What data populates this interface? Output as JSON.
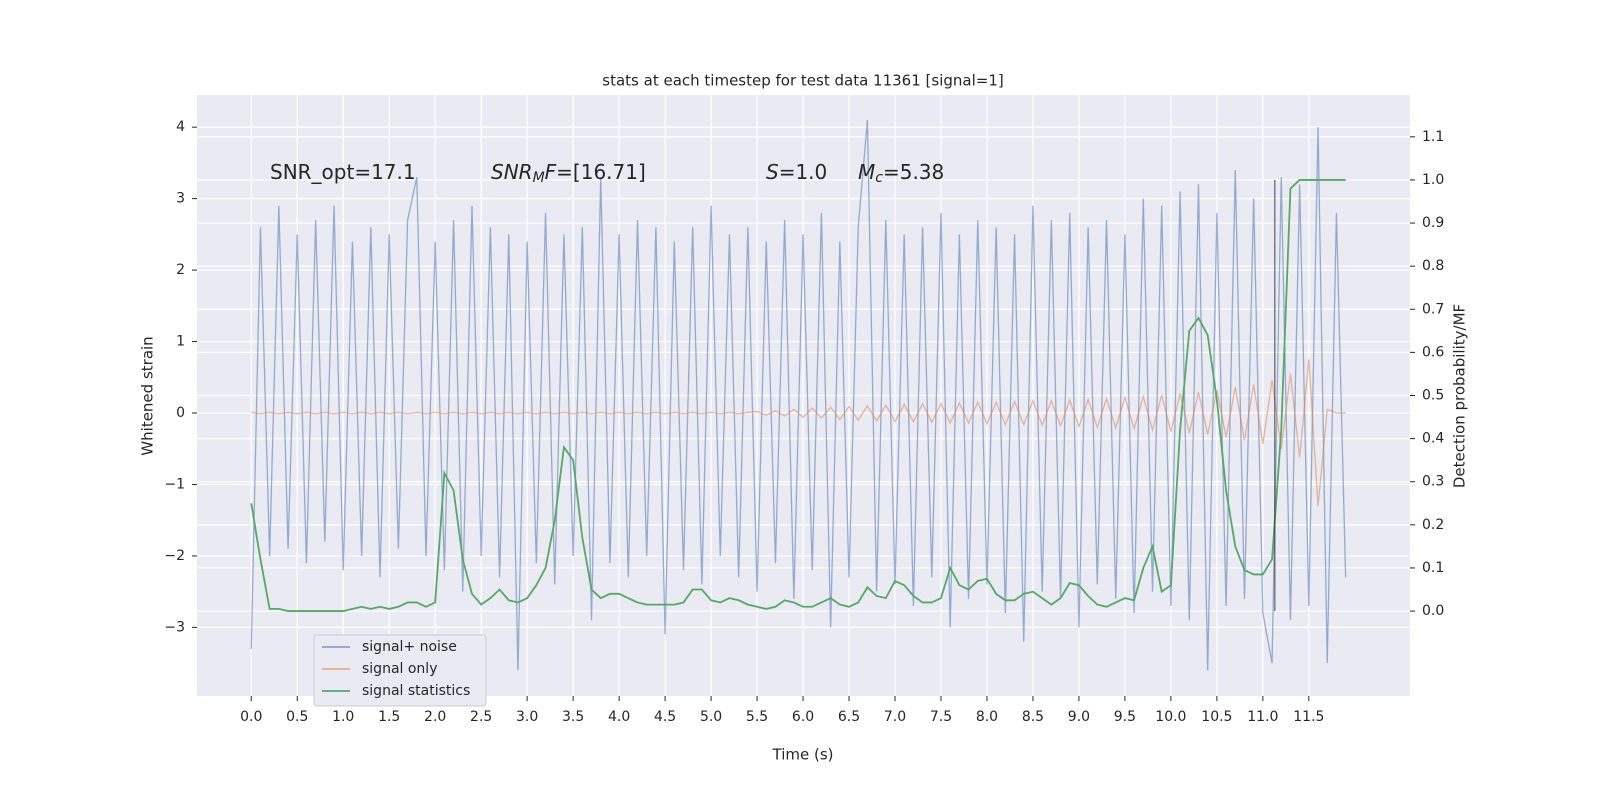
{
  "chart_data": {
    "type": "line",
    "title": "stats at each timestep for test data 11361 [signal=1]",
    "x_label": "Time (s)",
    "y_label": "Whitened strain",
    "y2_label": "Detection probability/MF",
    "grid": true,
    "legend": "lower left",
    "xlim": [
      -0.59,
      12.6
    ],
    "ylim": [
      -3.96,
      4.45
    ],
    "y2lim": [
      -0.197,
      1.197
    ],
    "xticks": [
      {
        "value": 0,
        "label": "0.0"
      },
      {
        "value": 0.5,
        "label": "0.5"
      },
      {
        "value": 1,
        "label": "1.0"
      },
      {
        "value": 1.5,
        "label": "1.5"
      },
      {
        "value": 2,
        "label": "2.0"
      },
      {
        "value": 2.5,
        "label": "2.5"
      },
      {
        "value": 3,
        "label": "3.0"
      },
      {
        "value": 3.5,
        "label": "3.5"
      },
      {
        "value": 4,
        "label": "4.0"
      },
      {
        "value": 4.5,
        "label": "4.5"
      },
      {
        "value": 5,
        "label": "5.0"
      },
      {
        "value": 5.5,
        "label": "5.5"
      },
      {
        "value": 6,
        "label": "6.0"
      },
      {
        "value": 6.5,
        "label": "6.5"
      },
      {
        "value": 7,
        "label": "7.0"
      },
      {
        "value": 7.5,
        "label": "7.5"
      },
      {
        "value": 8,
        "label": "8.0"
      },
      {
        "value": 8.5,
        "label": "8.5"
      },
      {
        "value": 9,
        "label": "9.0"
      },
      {
        "value": 9.5,
        "label": "9.5"
      },
      {
        "value": 10,
        "label": "10.0"
      },
      {
        "value": 10.5,
        "label": "10.5"
      },
      {
        "value": 11,
        "label": "11.0"
      },
      {
        "value": 11.5,
        "label": "11.5"
      }
    ],
    "yticks": [
      {
        "value": -3,
        "label": "−3"
      },
      {
        "value": -2,
        "label": "−2"
      },
      {
        "value": -1,
        "label": "−1"
      },
      0,
      1,
      2,
      3,
      4
    ],
    "y2ticks": [
      {
        "value": 0,
        "label": "0.0"
      },
      0.1,
      0.2,
      0.3,
      0.4,
      0.5,
      0.6,
      0.7,
      0.8,
      0.9,
      {
        "value": 1,
        "label": "1.0"
      },
      1.1
    ],
    "annotations": [
      {
        "parts": [
          "SNR_opt=17.1"
        ]
      },
      {
        "parts": [
          "SNR",
          "M",
          "F",
          "=[16.71]"
        ]
      },
      {
        "parts": [
          "S",
          "=1.0"
        ]
      },
      {
        "parts": [
          "M",
          "c",
          "=5.38"
        ]
      }
    ],
    "vline": {
      "x": 11.13,
      "y2_from": 0,
      "y2_to": 1
    },
    "x": [
      0,
      0.1,
      0.2,
      0.3,
      0.4,
      0.5,
      0.6,
      0.7,
      0.8,
      0.9,
      1,
      1.1,
      1.2,
      1.3,
      1.4,
      1.5,
      1.6,
      1.7,
      1.8,
      1.9,
      2,
      2.1,
      2.2,
      2.3,
      2.4,
      2.5,
      2.6,
      2.7,
      2.8,
      2.9,
      3,
      3.1,
      3.2,
      3.3,
      3.4,
      3.5,
      3.6,
      3.7,
      3.8,
      3.9,
      4,
      4.1,
      4.2,
      4.3,
      4.4,
      4.5,
      4.6,
      4.7,
      4.8,
      4.9,
      5,
      5.1,
      5.2,
      5.3,
      5.4,
      5.5,
      5.6,
      5.7,
      5.8,
      5.9,
      6,
      6.1,
      6.2,
      6.3,
      6.4,
      6.5,
      6.6,
      6.7,
      6.8,
      6.9,
      7,
      7.1,
      7.2,
      7.3,
      7.4,
      7.5,
      7.6,
      7.7,
      7.8,
      7.9,
      8,
      8.1,
      8.2,
      8.3,
      8.4,
      8.5,
      8.6,
      8.7,
      8.8,
      8.9,
      9,
      9.1,
      9.2,
      9.3,
      9.4,
      9.5,
      9.6,
      9.7,
      9.8,
      9.9,
      10,
      10.1,
      10.2,
      10.3,
      10.4,
      10.5,
      10.6,
      10.7,
      10.8,
      10.9,
      11,
      11.1,
      11.2,
      11.3,
      11.4,
      11.5,
      11.6,
      11.7,
      11.8,
      11.9
    ],
    "series": [
      {
        "name": "signal+ noise",
        "color": "#4c72b0",
        "values": [
          -3.3,
          2.6,
          -2.0,
          2.9,
          -1.9,
          2.5,
          -2.1,
          2.7,
          -1.8,
          2.9,
          -2.2,
          2.4,
          -2.0,
          2.6,
          -2.3,
          2.5,
          -1.9,
          2.7,
          3.3,
          -2.0,
          2.4,
          -2.2,
          2.7,
          -2.5,
          2.9,
          -2.0,
          2.6,
          -2.3,
          2.5,
          -3.6,
          2.4,
          -2.1,
          2.8,
          -2.4,
          2.5,
          -2.0,
          2.6,
          -2.9,
          3.3,
          -2.1,
          2.5,
          -2.3,
          2.7,
          -2.0,
          2.6,
          -3.1,
          2.4,
          -2.2,
          2.6,
          -2.4,
          2.9,
          -2.0,
          2.5,
          -2.3,
          2.6,
          -2.5,
          2.4,
          -2.1,
          2.7,
          -2.6,
          2.5,
          -2.2,
          2.8,
          -3.0,
          2.4,
          -2.3,
          2.6,
          4.1,
          -2.5,
          2.7,
          -2.4,
          2.5,
          -2.7,
          2.6,
          -2.3,
          2.8,
          -3.0,
          2.5,
          -2.6,
          2.7,
          -2.4,
          2.6,
          -2.8,
          2.5,
          -3.2,
          2.9,
          -2.5,
          2.7,
          -2.6,
          2.8,
          -3.0,
          2.6,
          -2.4,
          2.7,
          -2.6,
          2.5,
          -2.8,
          3.0,
          -2.5,
          2.9,
          -2.7,
          3.1,
          -2.9,
          3.2,
          -3.6,
          2.8,
          -2.7,
          3.4,
          -2.6,
          3.0,
          -2.8,
          -3.5,
          3.3,
          -2.9,
          3.2,
          -2.7,
          4.0,
          -3.5,
          2.8,
          -2.3
        ]
      },
      {
        "name": "signal only",
        "color": "#dd8452",
        "values": [
          0.01,
          -0.01,
          0.01,
          -0.01,
          0.01,
          -0.01,
          0.01,
          -0.01,
          0.01,
          -0.01,
          0.01,
          -0.01,
          0.01,
          -0.01,
          0.01,
          -0.01,
          0.01,
          -0.01,
          0.01,
          -0.01,
          0.01,
          -0.01,
          0.01,
          -0.01,
          0.01,
          -0.01,
          0.01,
          -0.01,
          0.01,
          -0.01,
          0.01,
          -0.01,
          0.01,
          -0.01,
          0.01,
          -0.01,
          0.01,
          -0.01,
          0.01,
          -0.01,
          0.01,
          -0.01,
          0.01,
          -0.01,
          0.01,
          -0.01,
          0.01,
          -0.01,
          0.01,
          -0.01,
          0.01,
          -0.01,
          0.01,
          -0.01,
          0.01,
          0.02,
          -0.03,
          0.03,
          -0.04,
          0.05,
          -0.06,
          0.07,
          -0.07,
          0.08,
          -0.09,
          0.09,
          -0.1,
          0.1,
          -0.11,
          0.11,
          -0.12,
          0.12,
          -0.12,
          0.13,
          -0.13,
          0.13,
          -0.14,
          0.14,
          -0.14,
          0.15,
          -0.15,
          0.15,
          -0.16,
          0.16,
          -0.16,
          0.17,
          -0.17,
          0.17,
          -0.18,
          0.18,
          -0.19,
          0.19,
          -0.2,
          0.2,
          -0.21,
          0.22,
          -0.22,
          0.23,
          -0.24,
          0.25,
          -0.26,
          0.27,
          -0.28,
          0.29,
          -0.3,
          0.32,
          -0.34,
          0.36,
          -0.38,
          0.4,
          -0.43,
          0.46,
          -0.5,
          0.55,
          -0.62,
          0.75,
          -1.3,
          0.05,
          0.0,
          0.0
        ]
      },
      {
        "name": "signal statistics",
        "color": "#55a868",
        "axis": "y2",
        "values": [
          0.25,
          0.12,
          0.005,
          0.005,
          0.0,
          0.0,
          0.0,
          0.0,
          0.0,
          0.0,
          0.0,
          0.005,
          0.01,
          0.005,
          0.01,
          0.005,
          0.01,
          0.02,
          0.02,
          0.01,
          0.02,
          0.32,
          0.28,
          0.12,
          0.04,
          0.015,
          0.03,
          0.05,
          0.025,
          0.02,
          0.03,
          0.06,
          0.1,
          0.21,
          0.38,
          0.35,
          0.17,
          0.05,
          0.03,
          0.04,
          0.04,
          0.03,
          0.02,
          0.015,
          0.015,
          0.015,
          0.015,
          0.02,
          0.05,
          0.05,
          0.025,
          0.02,
          0.03,
          0.025,
          0.015,
          0.01,
          0.005,
          0.01,
          0.025,
          0.02,
          0.01,
          0.01,
          0.02,
          0.03,
          0.015,
          0.01,
          0.02,
          0.055,
          0.035,
          0.03,
          0.07,
          0.06,
          0.035,
          0.02,
          0.02,
          0.03,
          0.1,
          0.06,
          0.05,
          0.07,
          0.075,
          0.04,
          0.025,
          0.025,
          0.04,
          0.045,
          0.03,
          0.015,
          0.03,
          0.065,
          0.06,
          0.035,
          0.015,
          0.01,
          0.02,
          0.03,
          0.025,
          0.1,
          0.15,
          0.045,
          0.06,
          0.42,
          0.65,
          0.68,
          0.64,
          0.49,
          0.28,
          0.15,
          0.095,
          0.085,
          0.085,
          0.12,
          0.42,
          0.98,
          1.0,
          1.0,
          1.0,
          1.0,
          1.0,
          1.0
        ]
      }
    ]
  }
}
